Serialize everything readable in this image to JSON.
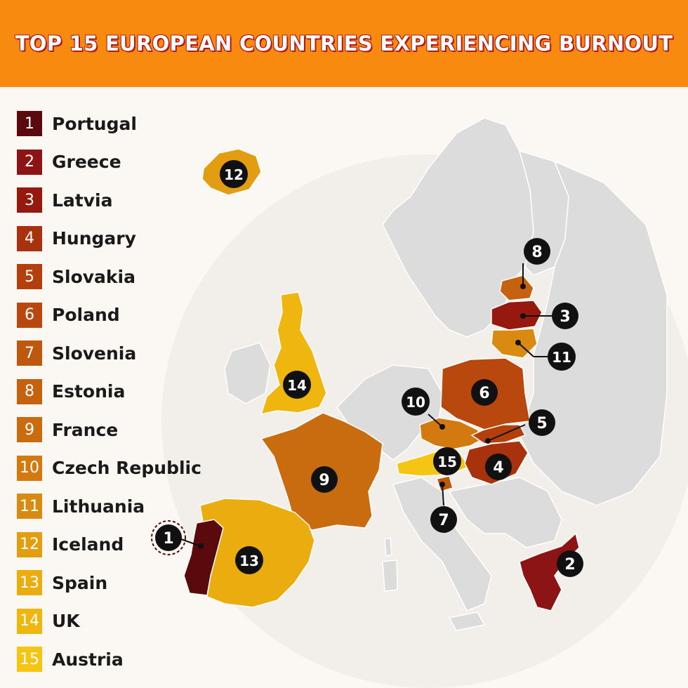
{
  "title": "TOP 15 EUROPEAN COUNTRIES EXPERIENCING BURNOUT",
  "colors": {
    "header_bg": "#f98a10",
    "land_other": "#dcdcdc",
    "ocean_circle": "#f1eee9",
    "rank_colors": [
      "#5a0a0c",
      "#8c1414",
      "#96180f",
      "#a8320e",
      "#b3400c",
      "#b8480e",
      "#bd580f",
      "#c6620f",
      "#c96c10",
      "#d27a0f",
      "#d98a10",
      "#e39d10",
      "#ebac10",
      "#f0b610",
      "#f5c514"
    ]
  },
  "legend": [
    {
      "rank": "1",
      "country": "Portugal"
    },
    {
      "rank": "2",
      "country": "Greece"
    },
    {
      "rank": "3",
      "country": "Latvia"
    },
    {
      "rank": "4",
      "country": "Hungary"
    },
    {
      "rank": "5",
      "country": "Slovakia"
    },
    {
      "rank": "6",
      "country": "Poland"
    },
    {
      "rank": "7",
      "country": "Slovenia"
    },
    {
      "rank": "8",
      "country": "Estonia"
    },
    {
      "rank": "9",
      "country": "France"
    },
    {
      "rank": "10",
      "country": "Czech Republic"
    },
    {
      "rank": "11",
      "country": "Lithuania"
    },
    {
      "rank": "12",
      "country": "Iceland"
    },
    {
      "rank": "13",
      "country": "Spain"
    },
    {
      "rank": "14",
      "country": "UK"
    },
    {
      "rank": "15",
      "country": "Austria"
    }
  ],
  "markers": [
    {
      "rank": "1",
      "country": "Portugal"
    },
    {
      "rank": "2",
      "country": "Greece"
    },
    {
      "rank": "3",
      "country": "Latvia"
    },
    {
      "rank": "4",
      "country": "Hungary"
    },
    {
      "rank": "5",
      "country": "Slovakia"
    },
    {
      "rank": "6",
      "country": "Poland"
    },
    {
      "rank": "7",
      "country": "Slovenia"
    },
    {
      "rank": "8",
      "country": "Estonia"
    },
    {
      "rank": "9",
      "country": "France"
    },
    {
      "rank": "10",
      "country": "Czech Republic"
    },
    {
      "rank": "11",
      "country": "Lithuania"
    },
    {
      "rank": "12",
      "country": "Iceland"
    },
    {
      "rank": "13",
      "country": "Spain"
    },
    {
      "rank": "14",
      "country": "UK"
    },
    {
      "rank": "15",
      "country": "Austria"
    }
  ]
}
